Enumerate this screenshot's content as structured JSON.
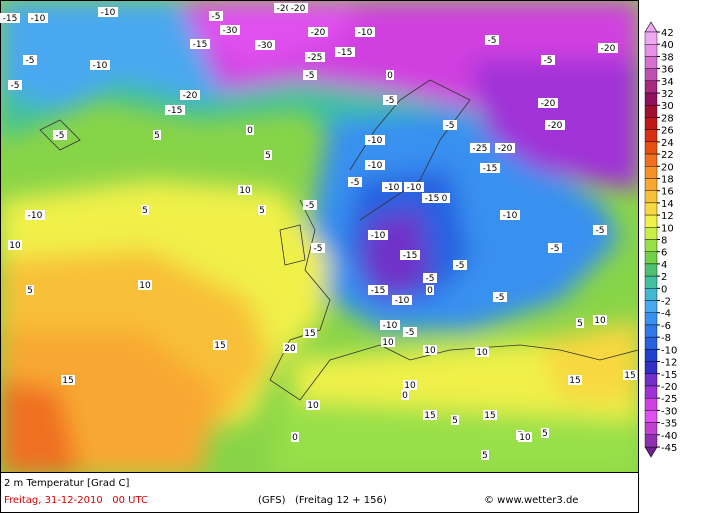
{
  "map": {
    "labels": [
      "-10",
      "-15",
      "-10",
      "-5",
      "-30",
      "-20",
      "-30",
      "-15",
      "-20",
      "-10",
      "-5",
      "-5",
      "-15",
      "-20",
      "-25",
      "-20",
      "-15",
      "-10",
      "-5",
      "0",
      "-5",
      "-10",
      "-5",
      "5",
      "0",
      "-5",
      "5",
      "-5",
      "-20",
      "-20",
      "-25",
      "-20",
      "-20",
      "-15",
      "-10",
      "-10",
      "-5",
      "-10",
      "-10",
      "-15",
      "-10",
      "-15",
      "-5",
      "-5",
      "-5",
      "-10",
      "5",
      "5",
      "10",
      "10",
      "5",
      "10",
      "15",
      "15",
      "15",
      "20",
      "10",
      "10",
      "10",
      "0",
      "5",
      "10",
      "15",
      "15",
      "10",
      "15",
      "5",
      "5",
      "5",
      "0",
      "10",
      "15",
      "10",
      "-5",
      "5",
      "-5",
      "0",
      "-15",
      "-10",
      "-5",
      "-10",
      "-5",
      "-10",
      "-5",
      "-5"
    ]
  },
  "legend": {
    "ticks": [
      42,
      40,
      38,
      36,
      34,
      32,
      30,
      28,
      26,
      24,
      22,
      20,
      18,
      16,
      14,
      12,
      10,
      8,
      6,
      4,
      2,
      0,
      -2,
      -4,
      -6,
      -8,
      -10,
      -12,
      -15,
      -20,
      -25,
      -30,
      -35,
      -40,
      -45
    ],
    "colors": [
      "#f0a8f0",
      "#e890e8",
      "#d870d0",
      "#c050b0",
      "#a82880",
      "#901060",
      "#a01030",
      "#c01818",
      "#d83010",
      "#e85010",
      "#f07020",
      "#f89028",
      "#f8a830",
      "#f8c038",
      "#f8d840",
      "#f0f048",
      "#c8f048",
      "#98e048",
      "#70d048",
      "#50c070",
      "#40c0a0",
      "#40b8d0",
      "#48a8f0",
      "#3890f0",
      "#3078e8",
      "#2860e0",
      "#2040d0",
      "#3030c8",
      "#7030c8",
      "#a030d8",
      "#d040e0",
      "#e050f0",
      "#c040d0",
      "#9030b0",
      "#702090"
    ]
  },
  "footer": {
    "title": "2 m Temperatur [Grad C]",
    "date": "Freitag, 31-12-2010   00 UTC",
    "model": "(GFS)   (Freitag 12 + 156)",
    "copyright": "© www.wetter3.de"
  }
}
